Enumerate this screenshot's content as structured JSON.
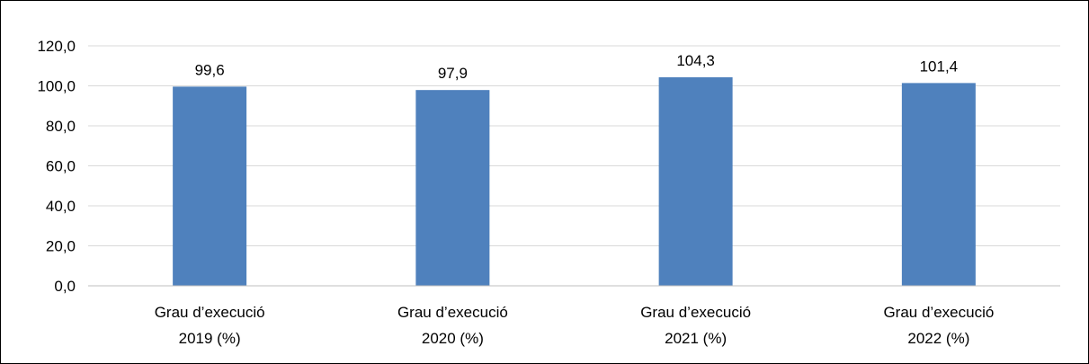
{
  "chart_data": {
    "type": "bar",
    "title": "",
    "xlabel": "",
    "ylabel": "",
    "categories": [
      [
        "Grau d’execució",
        "2019 (%)"
      ],
      [
        "Grau d’execució",
        "2020 (%)"
      ],
      [
        "Grau d’execució",
        "2021 (%)"
      ],
      [
        "Grau d’execució",
        "2022 (%)"
      ]
    ],
    "values": [
      99.6,
      97.9,
      104.3,
      101.4
    ],
    "data_labels": [
      "99,6",
      "97,9",
      "104,3",
      "101,4"
    ],
    "ylim": [
      0,
      120
    ],
    "y_ticks": [
      0,
      20,
      40,
      60,
      80,
      100,
      120
    ],
    "y_tick_labels": [
      "0,0",
      "20,0",
      "40,0",
      "60,0",
      "80,0",
      "100,0",
      "120,0"
    ],
    "grid": true,
    "legend": "none",
    "colors": {
      "bar": "#4F81BD",
      "grid": "#D9D9D9",
      "axis": "#BFBFBF",
      "text": "#000000",
      "frame": "#000000"
    }
  }
}
